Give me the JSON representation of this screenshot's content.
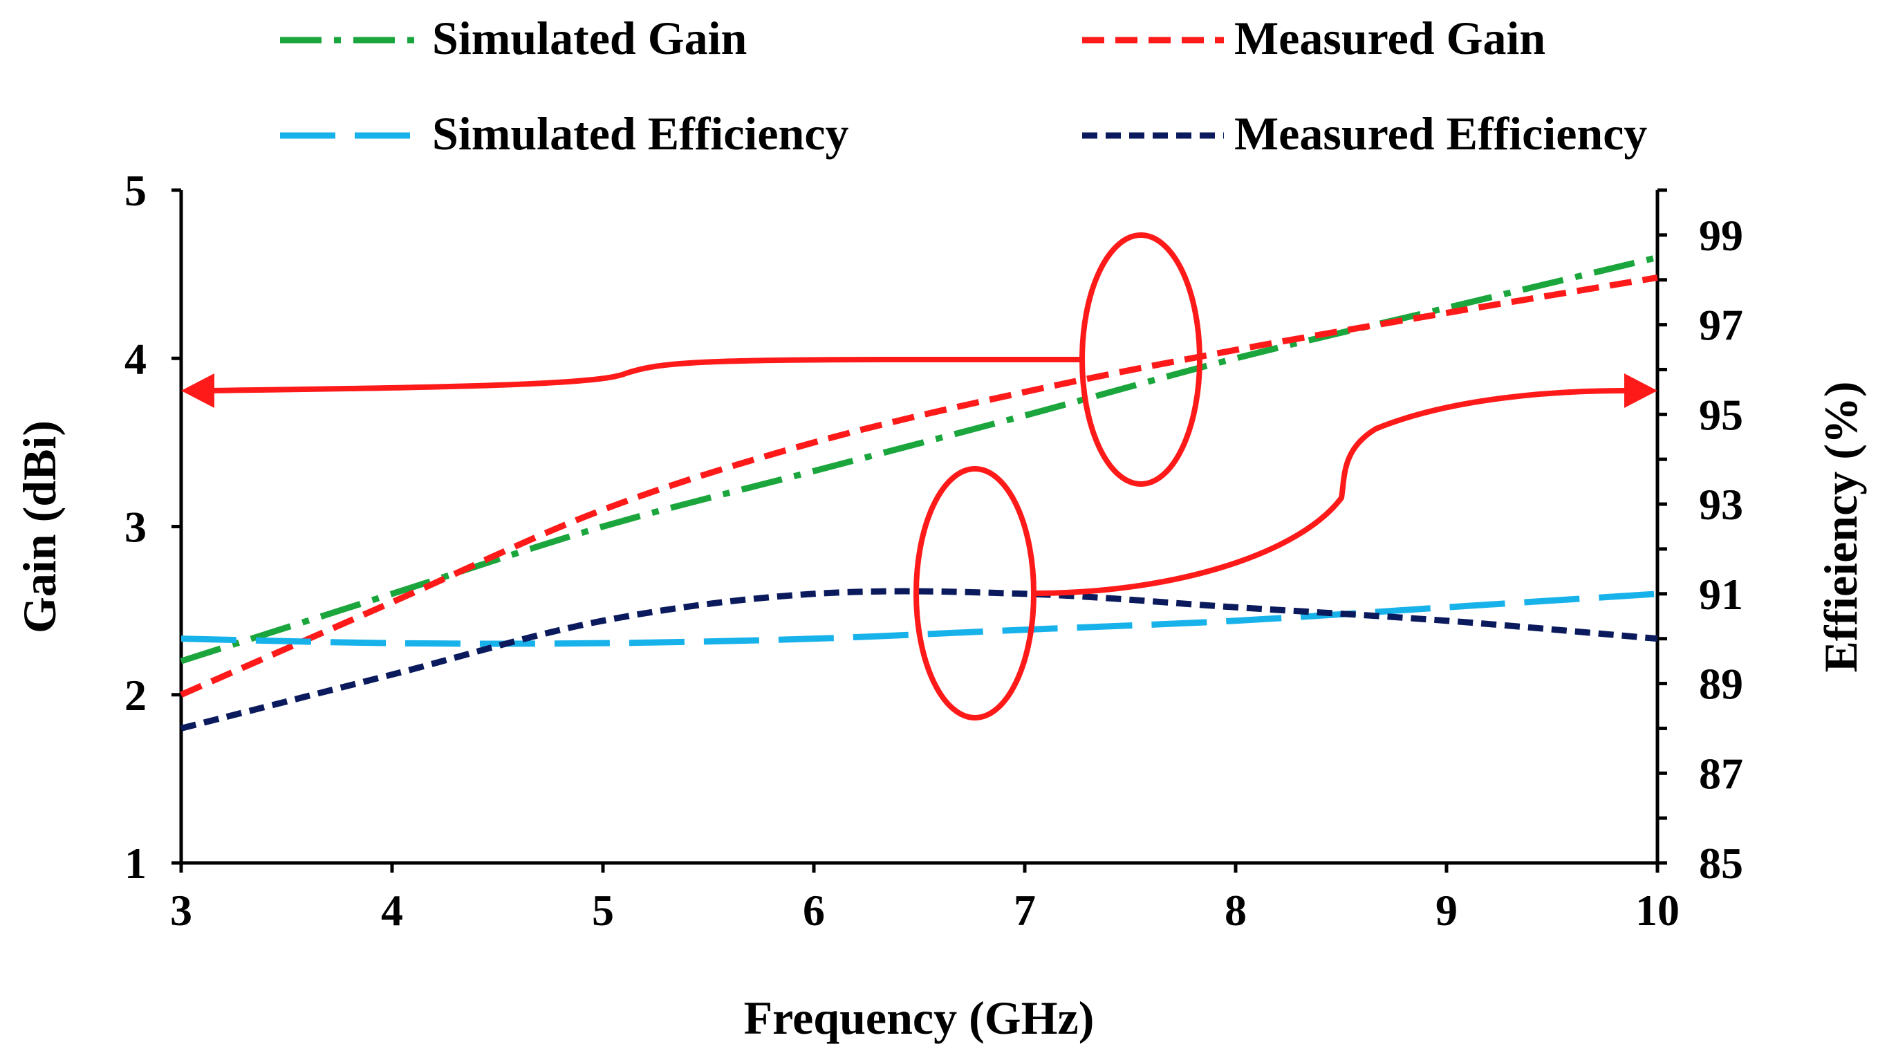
{
  "colors": {
    "simulated_gain": "#1aa63c",
    "measured_gain": "#ff1a1a",
    "simulated_efficiency": "#18b2ea",
    "measured_efficiency": "#0a1a5c",
    "annotation": "#ff1a1a"
  },
  "chart_data": {
    "type": "line",
    "xlabel": "Frequency (GHz)",
    "ylabel": "Gain (dBi)",
    "y2label": "Effieiency (%)",
    "xlim": [
      3,
      10
    ],
    "ylim": [
      1,
      5
    ],
    "y2lim": [
      85,
      100
    ],
    "xticks": [
      "3",
      "4",
      "5",
      "6",
      "7",
      "8",
      "9",
      "10"
    ],
    "yticks": [
      "1",
      "2",
      "3",
      "4",
      "5"
    ],
    "y2ticks": [
      "85",
      "87",
      "89",
      "91",
      "93",
      "95",
      "97",
      "99"
    ],
    "legend": {
      "simulated_gain": "Simulated Gain",
      "measured_gain": "Measured Gain",
      "simulated_efficiency": "Simulated Efficiency",
      "measured_efficiency": "Measured Efficiency"
    },
    "series": [
      {
        "key": "simulated_gain",
        "name": "Simulated Gain",
        "axis": "left",
        "x": [
          3,
          4,
          5,
          6,
          7,
          8,
          9,
          10
        ],
        "y": [
          2.2,
          2.6,
          3.0,
          3.33,
          3.66,
          4.0,
          4.3,
          4.6
        ]
      },
      {
        "key": "measured_gain",
        "name": "Measured Gain",
        "axis": "left",
        "x": [
          3,
          4,
          5,
          6,
          7,
          8,
          9,
          10
        ],
        "y": [
          2.0,
          2.55,
          3.1,
          3.5,
          3.8,
          4.05,
          4.27,
          4.48
        ]
      },
      {
        "key": "simulated_efficiency",
        "name": "Simulated Efficiency",
        "axis": "right",
        "x": [
          3,
          4,
          5,
          6,
          7,
          8,
          9,
          10
        ],
        "y": [
          90.0,
          89.9,
          89.9,
          90.0,
          90.2,
          90.4,
          90.7,
          91.0
        ]
      },
      {
        "key": "measured_efficiency",
        "name": "Measured Efficiency",
        "axis": "right",
        "x": [
          3,
          4,
          5,
          6,
          7,
          8,
          9,
          10
        ],
        "y": [
          88.0,
          89.2,
          90.4,
          91.0,
          91.0,
          90.7,
          90.4,
          90.0
        ]
      }
    ]
  }
}
